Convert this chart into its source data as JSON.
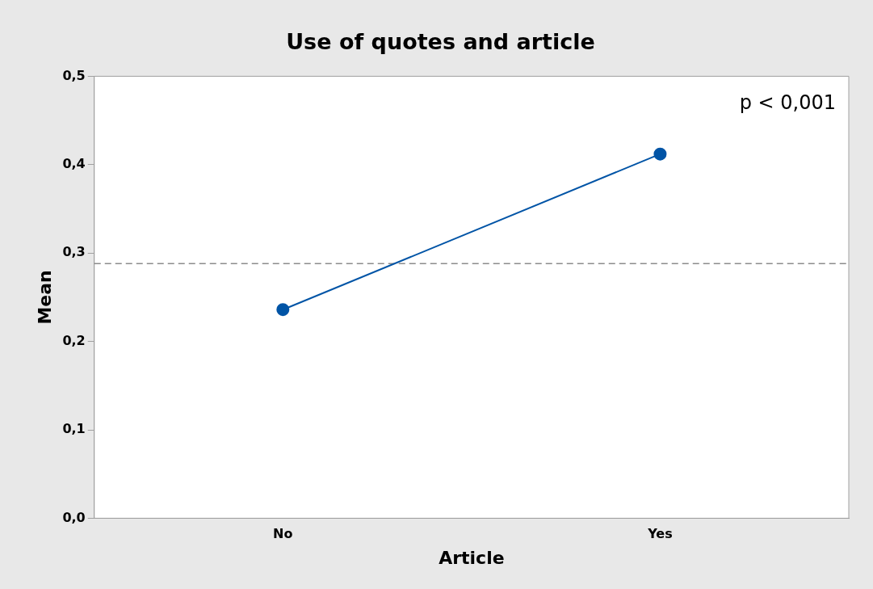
{
  "chart_data": {
    "type": "line",
    "title": "Use of quotes and article",
    "xlabel": "Article",
    "ylabel": "Mean",
    "categories": [
      "No",
      "Yes"
    ],
    "series": [
      {
        "color": "#0054a6",
        "values": [
          0.236,
          0.412
        ]
      }
    ],
    "ylim": [
      0,
      0.5
    ],
    "yticks": [
      {
        "value": 0,
        "label": "0,0"
      },
      {
        "value": 0.1,
        "label": "0,1"
      },
      {
        "value": 0.2,
        "label": "0,2"
      },
      {
        "value": 0.3,
        "label": "0,3"
      },
      {
        "value": 0.4,
        "label": "0,4"
      },
      {
        "value": 0.5,
        "label": "0,5"
      }
    ],
    "ref_lines": [
      {
        "axis": "y",
        "value": 0.288,
        "color": "#8c8c8c",
        "line_style": "dashed"
      }
    ],
    "annotations": [
      "p < 0,001"
    ],
    "marker": "circle",
    "line_style": "solid",
    "grid": false,
    "legend": false
  }
}
